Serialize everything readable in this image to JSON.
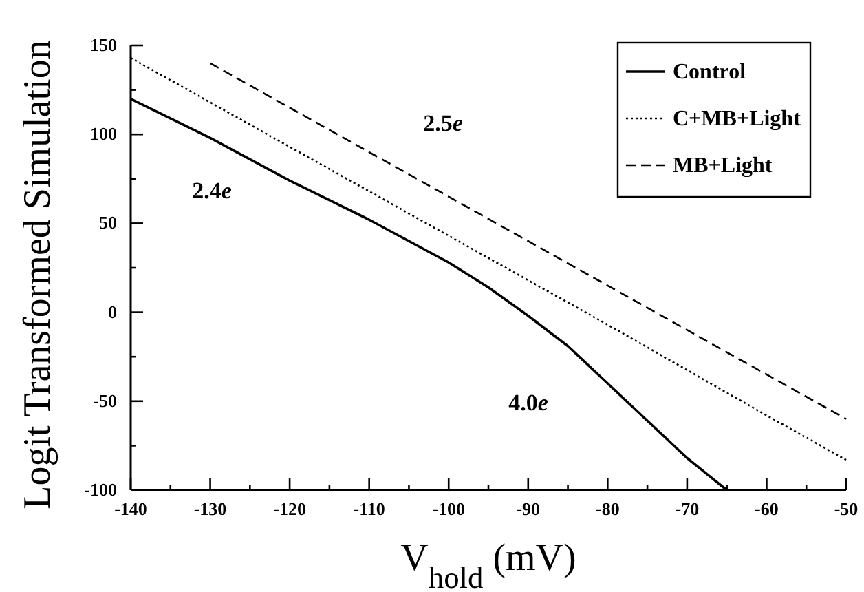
{
  "chart_data": {
    "type": "line",
    "xlabel": "V$_{hold}$ (mV)",
    "ylabel": "Logit Transformed Simulation",
    "xlim": [
      -140,
      -50
    ],
    "ylim": [
      -100,
      150
    ],
    "xticks": [
      -140,
      {
        "value": -135,
        "label": null
      },
      -130,
      {
        "value": -125,
        "label": null
      },
      -120,
      {
        "value": -115,
        "label": null
      },
      -110,
      {
        "value": -105,
        "label": null
      },
      -100,
      {
        "value": -95,
        "label": null
      },
      -90,
      {
        "value": -85,
        "label": null
      },
      -80,
      {
        "value": -75,
        "label": null
      },
      -70,
      {
        "value": -65,
        "label": null
      },
      -60,
      {
        "value": -55,
        "label": null
      },
      -50
    ],
    "yticks": [
      -100,
      {
        "value": -75,
        "label": null
      },
      -50,
      {
        "value": -25,
        "label": null
      },
      0,
      {
        "value": 25,
        "label": null
      },
      50,
      {
        "value": 75,
        "label": null
      },
      100,
      {
        "value": 125,
        "label": null
      },
      150
    ],
    "grid": false,
    "legend": "top right",
    "marker": "none",
    "series": [
      {
        "name": "Control",
        "color": "#000000",
        "line_style": "solid",
        "x": [
          -140,
          -130,
          -120,
          -110,
          -100,
          -95,
          -90,
          -85,
          -80,
          -75,
          -70,
          -65
        ],
        "values": [
          120,
          98,
          74,
          52,
          28,
          14,
          -2,
          -19,
          -40,
          -61,
          -82,
          -100
        ]
      },
      {
        "name": "C+MB+Light",
        "color": "#000000",
        "line_style": "dotted",
        "x": [
          -140,
          -120,
          -100,
          -80,
          -60,
          -50
        ],
        "values": [
          143,
          93,
          43,
          -7,
          -58,
          -83
        ]
      },
      {
        "name": "MB+Light",
        "color": "#000000",
        "line_style": "dashed",
        "x": [
          -130,
          -110,
          -90,
          -70,
          -50
        ],
        "values": [
          140,
          90,
          40,
          -10,
          -60
        ]
      }
    ],
    "annotations": [
      "2.5e",
      "2.4e",
      "4.0e"
    ]
  }
}
